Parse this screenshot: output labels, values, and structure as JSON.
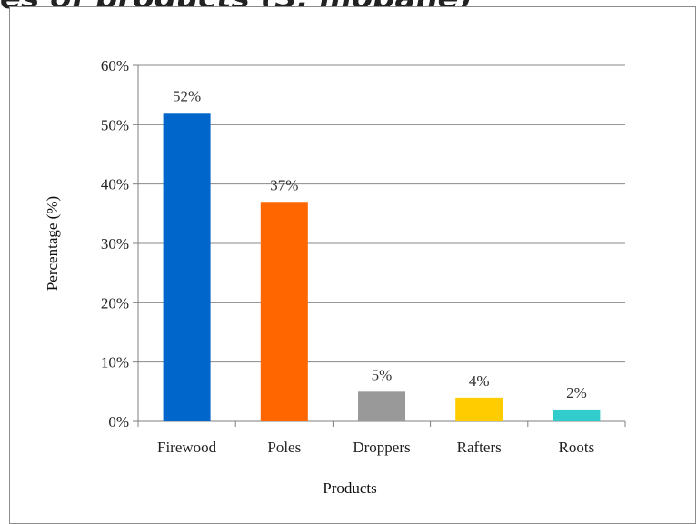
{
  "header": {
    "title_fragment": "es of products (S. mopane)"
  },
  "chart_data": {
    "type": "bar",
    "categories": [
      "Firewood",
      "Poles",
      "Droppers",
      "Rafters",
      "Roots"
    ],
    "values": [
      52,
      37,
      5,
      4,
      2
    ],
    "data_labels": [
      "52%",
      "37%",
      "5%",
      "4%",
      "2%"
    ],
    "colors": [
      "#0066cc",
      "#ff6600",
      "#999999",
      "#ffcc00",
      "#33cccc"
    ],
    "title": "",
    "xlabel": "Products",
    "ylabel": "Percentage (%)",
    "ylim": [
      0,
      60
    ],
    "yticks": [
      0,
      10,
      20,
      30,
      40,
      50,
      60
    ],
    "ytick_labels": [
      "0%",
      "10%",
      "20%",
      "30%",
      "40%",
      "50%",
      "60%"
    ],
    "grid": true,
    "legend": "none"
  }
}
